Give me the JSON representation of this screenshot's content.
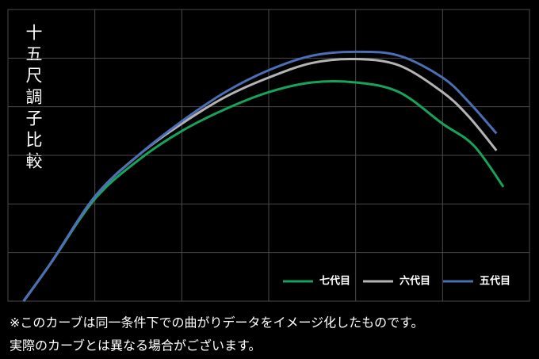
{
  "chart_data": {
    "type": "line",
    "title": "十五尺調子比較",
    "note": [
      "※このカーブは同一条件下での曲がりデータをイメージ化したものです。",
      "実際のカーブとは異なる場合がございます。"
    ],
    "xlim": [
      0,
      6
    ],
    "ylim": [
      0,
      6
    ],
    "xticks": [
      0,
      1,
      2,
      3,
      4,
      5,
      6
    ],
    "yticks": [
      0,
      1,
      2,
      3,
      4,
      5,
      6
    ],
    "grid": true,
    "legend": "bottom-right",
    "series": [
      {
        "name": "七代目",
        "color": "#17a35a",
        "x": [
          0.18,
          0.5,
          1,
          1.5,
          2,
          2.5,
          3,
          3.5,
          4,
          4.5,
          5,
          5.36,
          5.7
        ],
        "values": [
          0,
          0.8,
          2.1,
          2.9,
          3.5,
          3.95,
          4.3,
          4.5,
          4.5,
          4.3,
          3.65,
          3.2,
          2.35
        ]
      },
      {
        "name": "六代目",
        "color": "#b4b4b4",
        "x": [
          0.18,
          0.5,
          1,
          1.5,
          2,
          2.5,
          3,
          3.5,
          4,
          4.5,
          5,
          5.3,
          5.62
        ],
        "values": [
          0,
          0.8,
          2.15,
          3.0,
          3.65,
          4.2,
          4.6,
          4.9,
          4.98,
          4.85,
          4.3,
          3.8,
          3.1
        ]
      },
      {
        "name": "五代目",
        "color": "#4a6fb5",
        "x": [
          0.18,
          0.5,
          1,
          1.5,
          2,
          2.5,
          3,
          3.5,
          4,
          4.5,
          5,
          5.3,
          5.62
        ],
        "values": [
          0,
          0.8,
          2.15,
          3.0,
          3.7,
          4.3,
          4.75,
          5.05,
          5.13,
          5.05,
          4.6,
          4.1,
          3.45
        ]
      }
    ]
  }
}
